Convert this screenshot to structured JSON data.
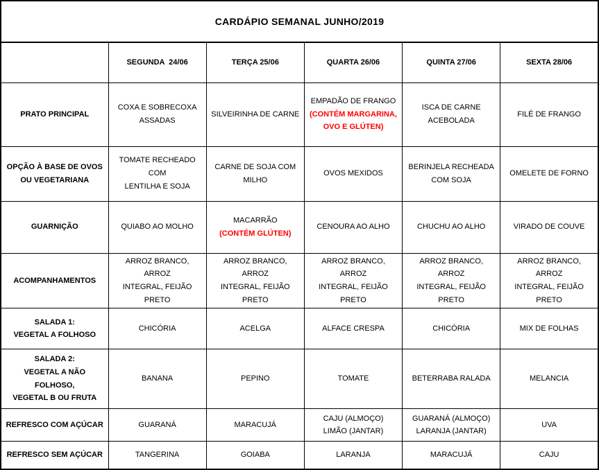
{
  "title": "CARDÁPIO SEMANAL JUNHO/2019",
  "colors": {
    "allergen_red": "#ff0000",
    "border": "#000000",
    "text": "#000000",
    "background": "#ffffff"
  },
  "table": {
    "column_headers": [
      "",
      "SEGUNDA  24/06",
      "TERÇA 25/06",
      "QUARTA 26/06",
      "QUINTA 27/06",
      "SEXTA 28/06"
    ],
    "rows": [
      {
        "header": [
          "PRATO PRINCIPAL"
        ],
        "cells": [
          [
            {
              "text": "COXA E SOBRECOXA"
            },
            {
              "text": "ASSADAS"
            }
          ],
          [
            {
              "text": "SILVEIRINHA DE CARNE"
            }
          ],
          [
            {
              "text": "EMPADÃO DE FRANGO"
            },
            {
              "text": "(CONTÉM MARGARINA,",
              "red": true
            },
            {
              "text": "OVO E GLÚTEN)",
              "red": true
            }
          ],
          [
            {
              "text": "ISCA DE CARNE"
            },
            {
              "text": "ACEBOLADA"
            }
          ],
          [
            {
              "text": "FILÉ DE FRANGO"
            }
          ]
        ]
      },
      {
        "header": [
          "OPÇÃO À BASE DE OVOS",
          "OU VEGETARIANA"
        ],
        "cells": [
          [
            {
              "text": "TOMATE RECHEADO COM"
            },
            {
              "text": "LENTILHA E SOJA"
            }
          ],
          [
            {
              "text": "CARNE DE SOJA COM"
            },
            {
              "text": "MILHO"
            }
          ],
          [
            {
              "text": "OVOS MEXIDOS"
            }
          ],
          [
            {
              "text": "BERINJELA RECHEADA"
            },
            {
              "text": "COM SOJA"
            }
          ],
          [
            {
              "text": "OMELETE DE FORNO"
            }
          ]
        ]
      },
      {
        "header": [
          "GUARNIÇÃO"
        ],
        "cells": [
          [
            {
              "text": "QUIABO AO MOLHO"
            }
          ],
          [
            {
              "text": "MACARRÃO"
            },
            {
              "text": "(CONTÉM GLÚTEN)",
              "red": true
            }
          ],
          [
            {
              "text": "CENOURA AO ALHO"
            }
          ],
          [
            {
              "text": "CHUCHU AO ALHO"
            }
          ],
          [
            {
              "text": "VIRADO DE COUVE"
            }
          ]
        ]
      },
      {
        "header": [
          "ACOMPANHAMENTOS"
        ],
        "cells": [
          [
            {
              "text": "ARROZ BRANCO, ARROZ"
            },
            {
              "text": "INTEGRAL, FEIJÃO PRETO"
            }
          ],
          [
            {
              "text": "ARROZ BRANCO, ARROZ"
            },
            {
              "text": "INTEGRAL, FEIJÃO PRETO"
            }
          ],
          [
            {
              "text": "ARROZ BRANCO, ARROZ"
            },
            {
              "text": "INTEGRAL, FEIJÃO PRETO"
            }
          ],
          [
            {
              "text": "ARROZ BRANCO, ARROZ"
            },
            {
              "text": "INTEGRAL, FEIJÃO PRETO"
            }
          ],
          [
            {
              "text": "ARROZ BRANCO, ARROZ"
            },
            {
              "text": "INTEGRAL, FEIJÃO PRETO"
            }
          ]
        ]
      },
      {
        "header": [
          "SALADA 1:",
          "VEGETAL A FOLHOSO"
        ],
        "cells": [
          [
            {
              "text": "CHICÓRIA"
            }
          ],
          [
            {
              "text": "ACELGA"
            }
          ],
          [
            {
              "text": "ALFACE CRESPA"
            }
          ],
          [
            {
              "text": "CHICÓRIA"
            }
          ],
          [
            {
              "text": "MIX DE FOLHAS"
            }
          ]
        ]
      },
      {
        "header": [
          "SALADA 2:",
          "VEGETAL A NÃO FOLHOSO,",
          "VEGETAL B OU FRUTA"
        ],
        "cells": [
          [
            {
              "text": "BANANA"
            }
          ],
          [
            {
              "text": "PEPINO"
            }
          ],
          [
            {
              "text": "TOMATE"
            }
          ],
          [
            {
              "text": "BETERRABA RALADA"
            }
          ],
          [
            {
              "text": "MELANCIA"
            }
          ]
        ]
      },
      {
        "header": [
          "REFRESCO COM AÇÚCAR"
        ],
        "cells": [
          [
            {
              "text": "GUARANÁ"
            }
          ],
          [
            {
              "text": "MARACUJÁ"
            }
          ],
          [
            {
              "text": "CAJU (ALMOÇO)"
            },
            {
              "text": "LIMÃO (JANTAR)"
            }
          ],
          [
            {
              "text": "GUARANÁ (ALMOÇO)"
            },
            {
              "text": "LARANJA (JANTAR)"
            }
          ],
          [
            {
              "text": "UVA"
            }
          ]
        ]
      },
      {
        "header": [
          "REFRESCO SEM AÇÚCAR"
        ],
        "cells": [
          [
            {
              "text": "TANGERINA"
            }
          ],
          [
            {
              "text": "GOIABA"
            }
          ],
          [
            {
              "text": "LARANJA"
            }
          ],
          [
            {
              "text": "MARACUJÁ"
            }
          ],
          [
            {
              "text": "CAJU"
            }
          ]
        ]
      }
    ]
  }
}
